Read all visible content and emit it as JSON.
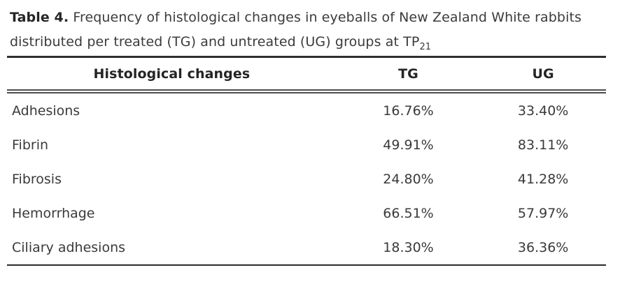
{
  "caption": {
    "label": "Table 4.",
    "line1": "Frequency of histological changes in eyeballs of New Zealand White rabbits",
    "line2": "distributed per treated (TG) and untreated (UG) groups at TP",
    "subscript": "21"
  },
  "table": {
    "columns": [
      "Histological changes",
      "TG",
      "UG"
    ],
    "rows": [
      {
        "label": "Adhesions",
        "tg": "16.76%",
        "ug": "33.40%"
      },
      {
        "label": "Fibrin",
        "tg": "49.91%",
        "ug": "83.11%"
      },
      {
        "label": "Fibrosis",
        "tg": "24.80%",
        "ug": "41.28%"
      },
      {
        "label": "Hemorrhage",
        "tg": "66.51%",
        "ug": "57.97%"
      },
      {
        "label": "Ciliary adhesions",
        "tg": "18.30%",
        "ug": "36.36%"
      }
    ]
  },
  "colors": {
    "text": "#3a3a3a",
    "heading_text": "#242424",
    "rule_top": "#2f2f2f",
    "rule_double": "#4d4d4d",
    "rule_bottom": "#2b2b2b",
    "background": "#ffffff"
  }
}
